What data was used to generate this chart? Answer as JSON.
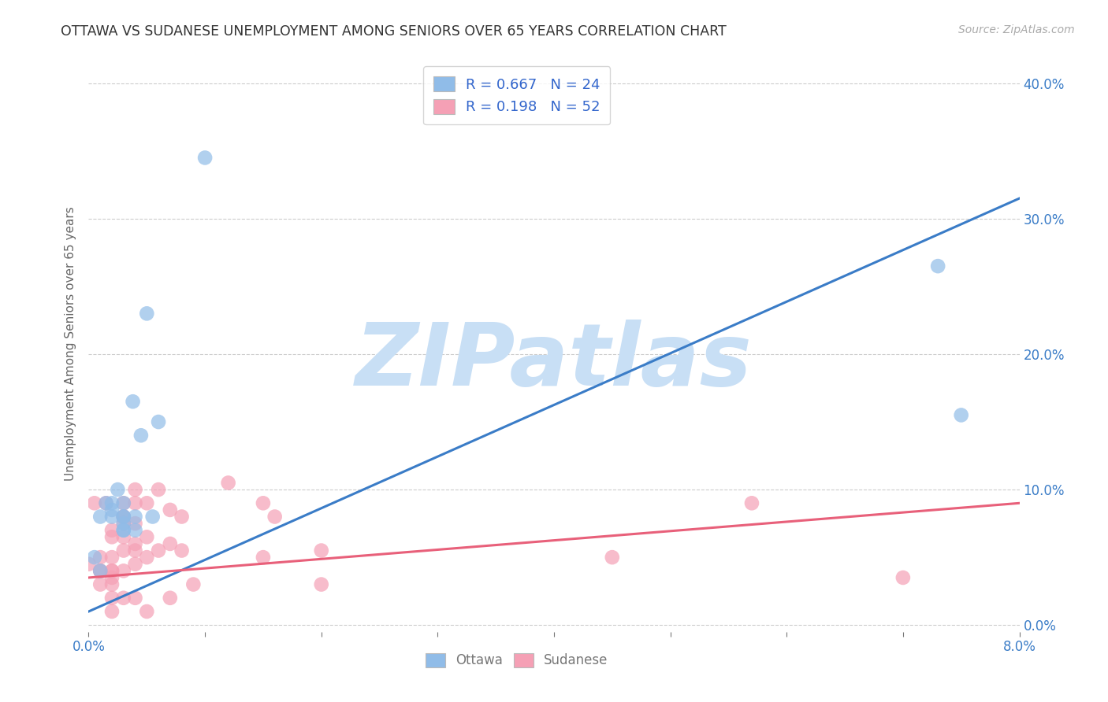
{
  "title": "OTTAWA VS SUDANESE UNEMPLOYMENT AMONG SENIORS OVER 65 YEARS CORRELATION CHART",
  "source": "Source: ZipAtlas.com",
  "ylabel": "Unemployment Among Seniors over 65 years",
  "xlim": [
    0.0,
    0.08
  ],
  "ylim": [
    -0.005,
    0.42
  ],
  "xticks": [
    0.0,
    0.01,
    0.02,
    0.03,
    0.04,
    0.05,
    0.06,
    0.07,
    0.08
  ],
  "xticklabels_show": [
    "0.0%",
    "",
    "",
    "",
    "",
    "",
    "",
    "",
    "8.0%"
  ],
  "yticks": [
    0.0,
    0.1,
    0.2,
    0.3,
    0.4
  ],
  "yticklabels_right": [
    "0.0%",
    "10.0%",
    "20.0%",
    "30.0%",
    "40.0%"
  ],
  "ottawa_color": "#90bce8",
  "sudanese_color": "#f5a0b5",
  "ottawa_line_color": "#3a7cc7",
  "sudanese_line_color": "#e8607a",
  "ottawa_R": 0.667,
  "ottawa_N": 24,
  "sudanese_R": 0.198,
  "sudanese_N": 52,
  "watermark": "ZIPatlas",
  "watermark_color": "#c8dff5",
  "background_color": "#ffffff",
  "grid_color": "#cccccc",
  "title_color": "#333333",
  "axis_label_color": "#666666",
  "tick_color": "#777777",
  "right_tick_color": "#3a7cc7",
  "legend_text_color": "#3366cc",
  "ottawa_x": [
    0.0005,
    0.001,
    0.001,
    0.0015,
    0.002,
    0.002,
    0.002,
    0.0025,
    0.003,
    0.003,
    0.003,
    0.003,
    0.003,
    0.003,
    0.004,
    0.004,
    0.005,
    0.006,
    0.0038,
    0.0045,
    0.073,
    0.075,
    0.01,
    0.0055
  ],
  "ottawa_y": [
    0.05,
    0.04,
    0.08,
    0.09,
    0.08,
    0.085,
    0.09,
    0.1,
    0.09,
    0.08,
    0.08,
    0.075,
    0.07,
    0.07,
    0.08,
    0.07,
    0.23,
    0.15,
    0.165,
    0.14,
    0.265,
    0.155,
    0.345,
    0.08
  ],
  "sudanese_x": [
    0.0,
    0.0005,
    0.001,
    0.001,
    0.001,
    0.001,
    0.0015,
    0.002,
    0.002,
    0.002,
    0.002,
    0.002,
    0.002,
    0.002,
    0.002,
    0.002,
    0.003,
    0.003,
    0.003,
    0.003,
    0.003,
    0.003,
    0.003,
    0.003,
    0.004,
    0.004,
    0.004,
    0.004,
    0.004,
    0.004,
    0.004,
    0.005,
    0.005,
    0.005,
    0.005,
    0.006,
    0.006,
    0.007,
    0.007,
    0.007,
    0.008,
    0.008,
    0.009,
    0.012,
    0.015,
    0.015,
    0.016,
    0.02,
    0.02,
    0.045,
    0.057,
    0.07
  ],
  "sudanese_y": [
    0.045,
    0.09,
    0.05,
    0.04,
    0.04,
    0.03,
    0.09,
    0.07,
    0.065,
    0.05,
    0.04,
    0.04,
    0.035,
    0.03,
    0.02,
    0.01,
    0.09,
    0.08,
    0.075,
    0.08,
    0.065,
    0.055,
    0.04,
    0.02,
    0.1,
    0.09,
    0.075,
    0.06,
    0.055,
    0.045,
    0.02,
    0.09,
    0.065,
    0.05,
    0.01,
    0.1,
    0.055,
    0.085,
    0.06,
    0.02,
    0.08,
    0.055,
    0.03,
    0.105,
    0.09,
    0.05,
    0.08,
    0.055,
    0.03,
    0.05,
    0.09,
    0.035
  ],
  "ottawa_line_x": [
    0.0,
    0.08
  ],
  "ottawa_line_y": [
    0.01,
    0.315
  ],
  "sudanese_line_x": [
    0.0,
    0.08
  ],
  "sudanese_line_y": [
    0.035,
    0.09
  ],
  "figsize": [
    14.06,
    8.92
  ],
  "dpi": 100
}
